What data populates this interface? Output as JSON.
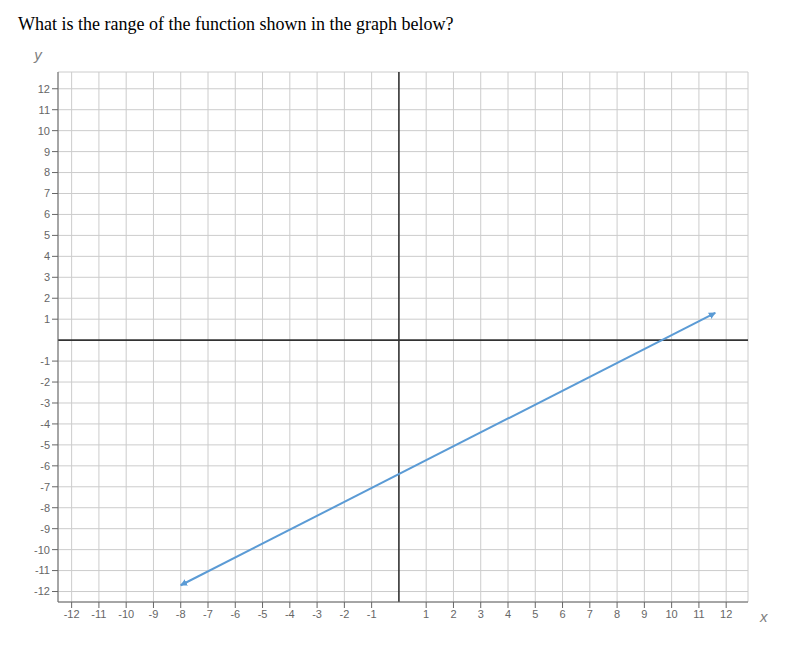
{
  "chart_data": {
    "type": "line",
    "title": "What is the range of the function shown in the graph below?",
    "xlabel": "x",
    "ylabel": "y",
    "x": [
      -8.0,
      11.6
    ],
    "values": [
      -11.7,
      1.3
    ],
    "color": "#5b9bd5",
    "marker": "arrow",
    "xlim": [
      -12.5,
      12.8
    ],
    "ylim": [
      -12.5,
      12.8
    ],
    "xticks": [
      -12,
      -11,
      -10,
      -9,
      -8,
      -7,
      -6,
      -5,
      -4,
      -3,
      -2,
      -1,
      1,
      2,
      3,
      4,
      5,
      6,
      7,
      8,
      9,
      10,
      11,
      12
    ],
    "yticks": [
      -12,
      -11,
      -10,
      -9,
      -8,
      -7,
      -6,
      -5,
      -4,
      -3,
      -2,
      -1,
      1,
      2,
      3,
      4,
      5,
      6,
      7,
      8,
      9,
      10,
      11,
      12
    ],
    "grid": true
  }
}
